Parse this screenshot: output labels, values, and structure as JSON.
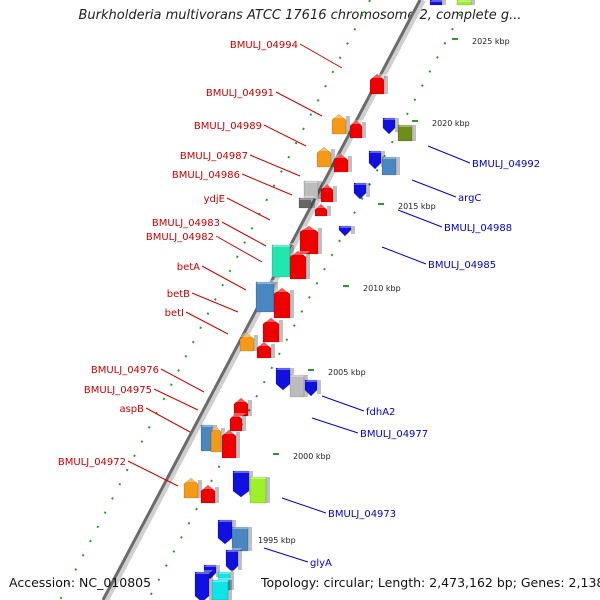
{
  "title": "Burkholderia multivorans ATCC 17616 chromosome 2, complete g...",
  "accession": "Accession: NC_010805",
  "topology": "Topology: circular; Length: 2,473,162 bp; Genes: 2,138",
  "colors": {
    "red": "#ee0000",
    "orange": "#f59a16",
    "blue": "#1010e0",
    "steel": "#4a86c0",
    "lime": "#9ef02a",
    "teal": "#22e6b0",
    "olive": "#6f8c1c",
    "cyan": "#10e4e8",
    "gray": "#bcbcbc",
    "darkgray": "#666666",
    "scale_tick": "#2a9a2a",
    "left_label": "#cc0000",
    "right_label": "#0000cc"
  },
  "scale_labels": [
    "2025 kbp",
    "2020 kbp",
    "2015 kbp",
    "2010 kbp",
    "2005 kbp",
    "2000 kbp",
    "1995 kbp"
  ],
  "left_labels": [
    "BMULJ_04994",
    "BMULJ_04991",
    "BMULJ_04989",
    "BMULJ_04987",
    "BMULJ_04986",
    "ydjE",
    "BMULJ_04983",
    "BMULJ_04982",
    "betA",
    "betB",
    "betI",
    "BMULJ_04976",
    "BMULJ_04975",
    "aspB",
    "BMULJ_04972"
  ],
  "right_labels": [
    "BMULJ_04992",
    "argC",
    "BMULJ_04988",
    "BMULJ_04985",
    "fdhA2",
    "BMULJ_04977",
    "BMULJ_04973",
    "glyA"
  ]
}
